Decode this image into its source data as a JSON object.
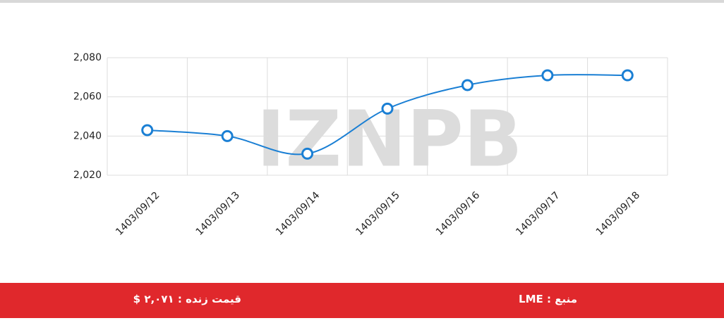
{
  "chart_data": {
    "type": "line",
    "categories": [
      "1403/09/12",
      "1403/09/13",
      "1403/09/14",
      "1403/09/15",
      "1403/09/16",
      "1403/09/17",
      "1403/09/18"
    ],
    "series": [
      {
        "name": "LME",
        "color": "#1a7fd4",
        "values": [
          2043,
          2040,
          2031,
          2054,
          2066,
          2071,
          2071
        ]
      }
    ],
    "ylim": [
      2020,
      2080
    ],
    "yticks": [
      {
        "value": 2020,
        "label": "2,020"
      },
      {
        "value": 2040,
        "label": "2,040"
      },
      {
        "value": 2060,
        "label": "2,060"
      },
      {
        "value": 2080,
        "label": "2,080"
      }
    ],
    "grid": true
  },
  "watermark": "IZNPB",
  "footer": {
    "live_price": "قیمت زنده : ۲,۰۷۱ $",
    "source": "منبع : LME"
  }
}
